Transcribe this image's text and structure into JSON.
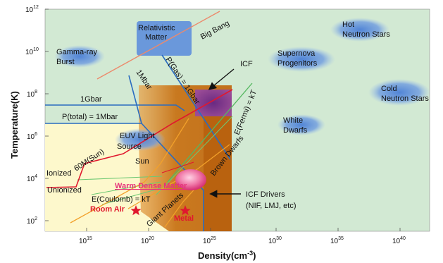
{
  "axes": {
    "ylabel": "Temperature(K)",
    "xlabel": "Density(cm",
    "xlabel_exp": "-3",
    "xlabel_close": ")",
    "yticks": [
      {
        "base": "10",
        "exp": "2"
      },
      {
        "base": "10",
        "exp": "4"
      },
      {
        "base": "10",
        "exp": "6"
      },
      {
        "base": "10",
        "exp": "8"
      },
      {
        "base": "10",
        "exp": "10"
      },
      {
        "base": "10",
        "exp": "12"
      }
    ],
    "xticks": [
      {
        "base": "10",
        "exp": "15"
      },
      {
        "base": "10",
        "exp": "20"
      },
      {
        "base": "10",
        "exp": "25"
      },
      {
        "base": "10",
        "exp": "30"
      },
      {
        "base": "10",
        "exp": "35"
      },
      {
        "base": "10",
        "exp": "40"
      }
    ]
  },
  "regions": {
    "relativistic_1": "Relativistic",
    "relativistic_2": "Matter",
    "big_bang": "Big Bang",
    "hot_ns_1": "Hot",
    "hot_ns_2": "Neutron Stars",
    "gamma_1": "Gamma-ray",
    "gamma_2": "Burst",
    "supernova_1": "Supernova",
    "supernova_2": "Progenitors",
    "icf": "ICF",
    "cold_ns_1": "Cold",
    "cold_ns_2": "Neutron Stars",
    "white_1": "White",
    "white_2": "Dwarfs",
    "euv_1": "EUV Light",
    "euv_2": "Source",
    "sun": "Sun",
    "brown_dwarfs": "Brown Dwarfs",
    "wdm": "Warm Dense Matter",
    "icf_drivers_1": "ICF Drivers",
    "icf_drivers_2": "(NIF, LMJ, etc)",
    "giant_planets": "Giant Planets",
    "room_air": "Room Air",
    "metal": "Metal"
  },
  "lines": {
    "gbar": "1Gbar",
    "ptotal": "P(total) = 1Mbar",
    "mbar": "1Mbar",
    "pgas": "P(Gas) = 1Gbar",
    "efermi": "E(Fermi) = kT",
    "ecoulomb": "E(Coulomb) = kT",
    "sixty_m": "60M(Sun)",
    "ionized": "Ionized",
    "unionized": "Unionized"
  },
  "colors": {
    "plot_bg": "#d2e9d3",
    "ideal_region": "#fdf8cc",
    "icf_box": "#c97a1c",
    "blob_blue": "#5f8fdc",
    "icf_purple": "#7d3a8c",
    "red_line": "#e0182e",
    "blue_line": "#2a6cc0",
    "wdm_pink": "#e6327a"
  }
}
